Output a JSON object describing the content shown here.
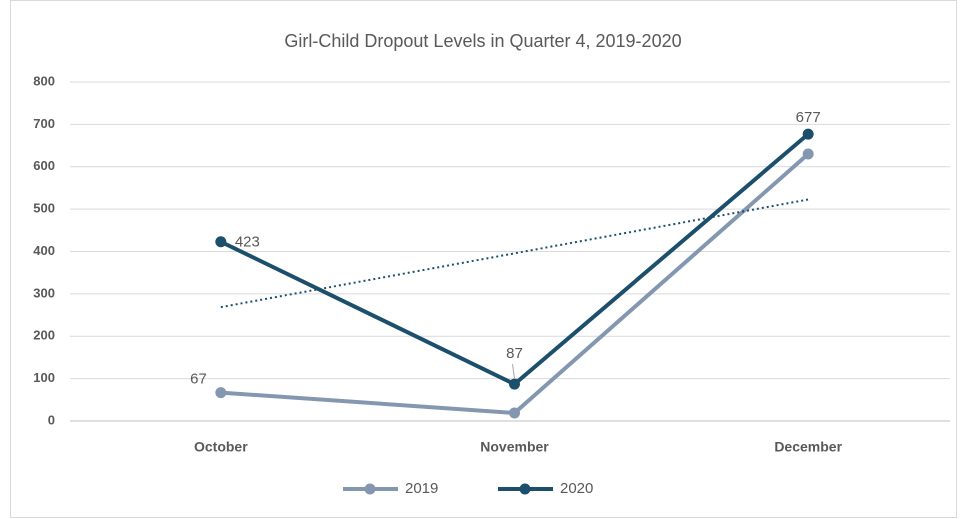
{
  "chart_data": {
    "type": "line",
    "title": "Girl-Child Dropout Levels in Quarter 4, 2019-2020",
    "categories": [
      "October",
      "November",
      "December"
    ],
    "series": [
      {
        "name": "2019",
        "color": "#8497b0",
        "values": [
          67,
          19,
          630
        ],
        "data_labels": [
          true,
          false,
          false
        ]
      },
      {
        "name": "2020",
        "color": "#1b4f6b",
        "values": [
          423,
          87,
          677
        ],
        "data_labels": [
          true,
          true,
          true
        ],
        "trendline": "linear"
      }
    ],
    "ylim": [
      0,
      800
    ],
    "yticks": [
      0,
      100,
      200,
      300,
      400,
      500,
      600,
      700,
      800
    ],
    "grid": true,
    "legend": "bottom"
  }
}
